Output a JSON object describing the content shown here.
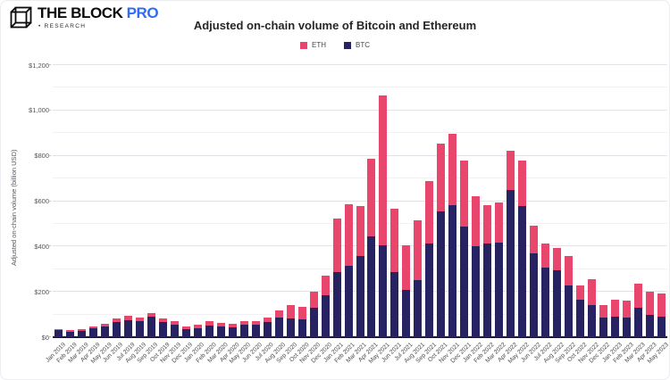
{
  "header": {
    "brand": "THE BLOCK",
    "brand_pro": "PRO",
    "brand_sub": "• RESEARCH",
    "title": "Adjusted on-chain volume of Bitcoin and Ethereum"
  },
  "colors": {
    "eth": "#e8466d",
    "btc": "#272262",
    "pro_blue": "#2e6bf6",
    "axis_line": "#17143a"
  },
  "chart_data": {
    "type": "bar",
    "stacked": true,
    "title": "Adjusted on-chain volume of Bitcoin and Ethereum",
    "xlabel": "",
    "ylabel": "Adjusted on-chain volume (billion USD)",
    "ylim": [
      0,
      1200
    ],
    "ytick_interval": 200,
    "minor_grid_interval": 100,
    "grid": true,
    "legend_position": "top-center",
    "ytick_labels": [
      "$0",
      "$200",
      "$400",
      "$600",
      "$800",
      "$1,000",
      "$1,200"
    ],
    "categories": [
      "Jan 2019",
      "Feb 2019",
      "Mar 2019",
      "Apr 2019",
      "May 2019",
      "Jun 2019",
      "Jul 2019",
      "Aug 2019",
      "Sep 2019",
      "Oct 2019",
      "Nov 2019",
      "Dec 2019",
      "Jan 2020",
      "Feb 2020",
      "Mar 2020",
      "Apr 2020",
      "May 2020",
      "Jun 2020",
      "Jul 2020",
      "Aug 2020",
      "Sep 2020",
      "Oct 2020",
      "Nov 2020",
      "Dec 2020",
      "Jan 2021",
      "Feb 2021",
      "Mar 2021",
      "Apr 2021",
      "May 2021",
      "Jun 2021",
      "Jul 2021",
      "Aug 2021",
      "Sep 2021",
      "Oct 2021",
      "Nov 2021",
      "Dec 2021",
      "Jan 2022",
      "Feb 2022",
      "Mar 2022",
      "Apr 2022",
      "May 2022",
      "Jun 2022",
      "Jul 2022",
      "Aug 2022",
      "Sep 2022",
      "Oct 2022",
      "Nov 2022",
      "Dec 2022",
      "Jan 2023",
      "Feb 2023",
      "Mar 2023",
      "Apr 2023",
      "May 2023"
    ],
    "series": [
      {
        "name": "BTC",
        "color": "#272262",
        "values": [
          30,
          25,
          28,
          38,
          47,
          67,
          76,
          69,
          89,
          67,
          56,
          36,
          40,
          51,
          47,
          43,
          54,
          55,
          66,
          85,
          82,
          79,
          131,
          186,
          288,
          315,
          360,
          443,
          404,
          288,
          210,
          253,
          413,
          553,
          583,
          488,
          400,
          413,
          416,
          649,
          577,
          368,
          305,
          295,
          229,
          164,
          142,
          85,
          89,
          85,
          128,
          98,
          92
        ]
      },
      {
        "name": "ETH",
        "color": "#e8466d",
        "values": [
          6,
          5,
          6,
          9,
          12,
          16,
          18,
          16,
          19,
          16,
          14,
          12,
          16,
          19,
          18,
          16,
          16,
          17,
          19,
          35,
          60,
          55,
          68,
          87,
          236,
          271,
          218,
          344,
          664,
          278,
          194,
          262,
          275,
          299,
          315,
          292,
          220,
          170,
          177,
          173,
          203,
          124,
          108,
          98,
          131,
          65,
          114,
          55,
          75,
          76,
          108,
          101,
          102
        ]
      }
    ],
    "legend": [
      {
        "label": "ETH",
        "color": "#e8466d"
      },
      {
        "label": "BTC",
        "color": "#272262"
      }
    ]
  }
}
